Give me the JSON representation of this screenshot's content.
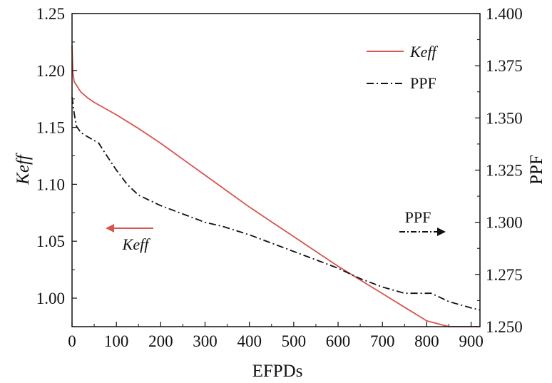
{
  "chart_data": {
    "type": "line",
    "xlabel": "EFPDs",
    "ylabel_left": "Keff",
    "ylabel_right": "PPF",
    "xlim": [
      0,
      920
    ],
    "ylim_left": [
      0.97,
      1.25
    ],
    "ylim_right": [
      1.25,
      1.4
    ],
    "x_ticks": [
      "0",
      "100",
      "200",
      "300",
      "400",
      "500",
      "600",
      "700",
      "800",
      "900"
    ],
    "y_left_ticks": [
      "1.00",
      "1.05",
      "1.10",
      "1.15",
      "1.20",
      "1.25"
    ],
    "y_right_ticks": [
      "1.250",
      "1.275",
      "1.300",
      "1.325",
      "1.350",
      "1.375",
      "1.400"
    ],
    "grid": false,
    "legend_position": "top-right",
    "series": [
      {
        "name": "Keff",
        "axis": "left",
        "color": "#d9534f",
        "style": "solid",
        "x": [
          0,
          2,
          5,
          10,
          20,
          35,
          50,
          100,
          150,
          200,
          250,
          300,
          350,
          400,
          450,
          500,
          550,
          600,
          650,
          700,
          750,
          800,
          850,
          900,
          920
        ],
        "y": [
          1.222,
          1.198,
          1.19,
          1.187,
          1.181,
          1.176,
          1.172,
          1.161,
          1.149,
          1.136,
          1.122,
          1.108,
          1.094,
          1.08,
          1.067,
          1.054,
          1.041,
          1.028,
          1.016,
          1.004,
          0.992,
          0.98,
          0.968,
          0.955,
          0.95
        ]
      },
      {
        "name": "PPF",
        "axis": "right",
        "color": "#111111",
        "style": "dash-dot",
        "x": [
          0,
          5,
          10,
          20,
          35,
          60,
          75,
          100,
          125,
          150,
          200,
          250,
          300,
          340,
          400,
          450,
          500,
          550,
          600,
          650,
          700,
          750,
          780,
          810,
          850,
          900,
          920
        ],
        "y": [
          1.36,
          1.352,
          1.346,
          1.343,
          1.341,
          1.338,
          1.333,
          1.325,
          1.318,
          1.313,
          1.308,
          1.304,
          1.3,
          1.298,
          1.294,
          1.29,
          1.286,
          1.282,
          1.278,
          1.273,
          1.269,
          1.266,
          1.266,
          1.266,
          1.262,
          1.259,
          1.258
        ]
      }
    ],
    "annotations": [
      {
        "text": "Keff",
        "arrow": "left"
      },
      {
        "text": "PPF",
        "arrow": "right"
      }
    ]
  },
  "legend": {
    "keff_label": "Keff",
    "ppf_label": "PPF"
  }
}
